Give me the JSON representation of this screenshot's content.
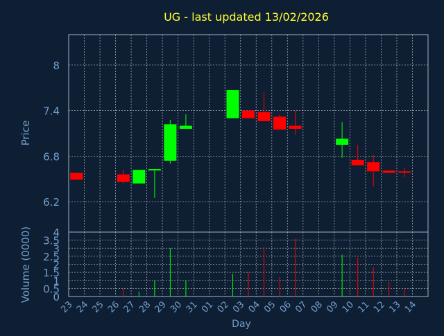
{
  "chart_data": {
    "type": "candlestick",
    "title": "UG - last updated 13/02/2026",
    "xlabel": "Day",
    "colors": {
      "background": "#0f1f33",
      "title": "#ffff33",
      "axis_text": "#6f9fcf",
      "up": "#00ff00",
      "down": "#ff0000",
      "grid": "#ffffff"
    },
    "x_ticks": [
      "23",
      "24",
      "25",
      "26",
      "27",
      "28",
      "29",
      "30",
      "31",
      "01",
      "02",
      "03",
      "04",
      "05",
      "06",
      "07",
      "08",
      "09",
      "10",
      "11",
      "12",
      "13",
      "14"
    ],
    "price_panel": {
      "ylabel": "Price",
      "ylim": [
        5.8,
        8.4
      ],
      "y_ticks": [
        "8",
        "7.4",
        "6.8",
        "6.2"
      ],
      "y_tick_values": [
        8.0,
        7.4,
        6.8,
        6.2
      ]
    },
    "volume_panel": {
      "ylabel": "Volume (0000)",
      "ylim": [
        0,
        4
      ],
      "y_ticks": [
        "4",
        "3.5",
        "3",
        "2.5",
        "2",
        "1.5",
        "1",
        "0.5",
        "0"
      ],
      "y_tick_values": [
        4,
        3.5,
        3,
        2.5,
        2,
        1.5,
        1,
        0.5,
        0
      ]
    },
    "candles": [
      {
        "day": "23",
        "open": 6.58,
        "close": 6.49,
        "high": 6.58,
        "low": 6.49,
        "volume": 0.0
      },
      {
        "day": "26",
        "open": 6.56,
        "close": 6.46,
        "high": 6.62,
        "low": 6.44,
        "volume": 0.5
      },
      {
        "day": "27",
        "open": 6.44,
        "close": 6.62,
        "high": 6.62,
        "low": 6.44,
        "volume": 0.3
      },
      {
        "day": "28",
        "open": 6.62,
        "close": 6.63,
        "high": 6.63,
        "low": 6.25,
        "volume": 1.0
      },
      {
        "day": "29",
        "open": 6.74,
        "close": 7.22,
        "high": 7.28,
        "low": 6.7,
        "volume": 3.0
      },
      {
        "day": "30",
        "open": 7.16,
        "close": 7.2,
        "high": 7.35,
        "low": 7.16,
        "volume": 1.0
      },
      {
        "day": "02",
        "open": 7.3,
        "close": 7.67,
        "high": 7.67,
        "low": 7.3,
        "volume": 1.4
      },
      {
        "day": "03",
        "open": 7.4,
        "close": 7.3,
        "high": 7.4,
        "low": 7.3,
        "volume": 1.5
      },
      {
        "day": "04",
        "open": 7.38,
        "close": 7.26,
        "high": 7.64,
        "low": 7.26,
        "volume": 3.1
      },
      {
        "day": "05",
        "open": 7.32,
        "close": 7.15,
        "high": 7.35,
        "low": 7.15,
        "volume": 1.2
      },
      {
        "day": "06",
        "open": 7.2,
        "close": 7.16,
        "high": 7.4,
        "low": 7.08,
        "volume": 3.6
      },
      {
        "day": "09",
        "open": 6.95,
        "close": 7.03,
        "high": 7.25,
        "low": 6.78,
        "volume": 2.6
      },
      {
        "day": "10",
        "open": 6.75,
        "close": 6.68,
        "high": 6.95,
        "low": 6.68,
        "volume": 2.4
      },
      {
        "day": "11",
        "open": 6.72,
        "close": 6.6,
        "high": 6.82,
        "low": 6.4,
        "volume": 1.8
      },
      {
        "day": "12",
        "open": 6.61,
        "close": 6.58,
        "high": 6.61,
        "low": 6.58,
        "volume": 0.9
      },
      {
        "day": "13",
        "open": 6.6,
        "close": 6.59,
        "high": 6.65,
        "low": 6.52,
        "volume": 0.5
      }
    ]
  }
}
